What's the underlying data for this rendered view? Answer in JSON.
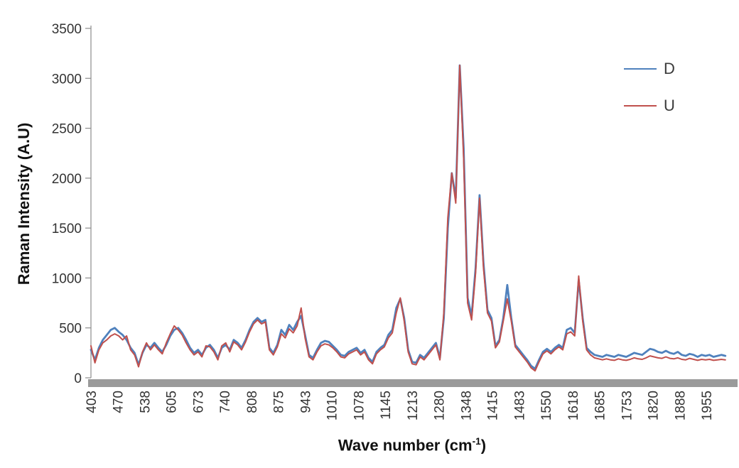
{
  "chart_data": {
    "type": "line",
    "title": "",
    "xlabel": "Wave number (cm⁻¹)",
    "xlabel_parts": {
      "pre": "Wave number (cm",
      "sup": "-1",
      "post": ")"
    },
    "ylabel": "Raman Intensity (A.U)",
    "xlim": [
      403,
      2023
    ],
    "ylim": [
      0,
      3500
    ],
    "grid": false,
    "legend_position": "top-right",
    "yticks": [
      0,
      500,
      1000,
      1500,
      2000,
      2500,
      3000,
      3500
    ],
    "xtick_labels": [
      "403",
      "470",
      "538",
      "605",
      "673",
      "740",
      "808",
      "875",
      "943",
      "1010",
      "1078",
      "1145",
      "1213",
      "1280",
      "1348",
      "1415",
      "1483",
      "1550",
      "1618",
      "1685",
      "1753",
      "1820",
      "1888",
      "1955"
    ],
    "axis_color": "#8c8c8c",
    "x_axis_bar_color": "#9a9a9a",
    "tick_label_color": "#333333",
    "x": [
      403,
      413,
      423,
      433,
      443,
      453,
      463,
      473,
      483,
      493,
      503,
      513,
      523,
      533,
      543,
      553,
      563,
      573,
      583,
      593,
      603,
      613,
      623,
      633,
      643,
      653,
      663,
      673,
      683,
      693,
      703,
      713,
      723,
      733,
      743,
      753,
      763,
      773,
      783,
      793,
      803,
      813,
      823,
      833,
      843,
      853,
      863,
      873,
      883,
      893,
      903,
      913,
      923,
      933,
      943,
      953,
      963,
      973,
      983,
      993,
      1003,
      1013,
      1023,
      1033,
      1043,
      1053,
      1063,
      1073,
      1083,
      1093,
      1103,
      1113,
      1123,
      1133,
      1143,
      1153,
      1163,
      1173,
      1183,
      1193,
      1203,
      1213,
      1223,
      1233,
      1243,
      1253,
      1263,
      1273,
      1283,
      1293,
      1303,
      1313,
      1323,
      1333,
      1343,
      1353,
      1363,
      1373,
      1383,
      1393,
      1403,
      1413,
      1423,
      1433,
      1443,
      1453,
      1463,
      1473,
      1483,
      1493,
      1503,
      1513,
      1523,
      1533,
      1543,
      1553,
      1563,
      1573,
      1583,
      1593,
      1603,
      1613,
      1623,
      1633,
      1643,
      1653,
      1663,
      1673,
      1683,
      1693,
      1703,
      1713,
      1723,
      1733,
      1743,
      1753,
      1763,
      1773,
      1783,
      1793,
      1803,
      1813,
      1823,
      1833,
      1843,
      1853,
      1863,
      1873,
      1883,
      1893,
      1903,
      1913,
      1923,
      1933,
      1943,
      1953,
      1963,
      1973,
      1983,
      1993,
      2003
    ],
    "series": [
      {
        "name": "D",
        "color": "#4F81BD",
        "line_width": 2.8,
        "values": [
          280,
          180,
          300,
          380,
          430,
          480,
          500,
          460,
          430,
          380,
          300,
          250,
          130,
          250,
          330,
          300,
          350,
          300,
          260,
          330,
          420,
          480,
          500,
          450,
          380,
          300,
          250,
          280,
          230,
          300,
          330,
          280,
          200,
          300,
          330,
          280,
          380,
          350,
          300,
          380,
          480,
          560,
          600,
          560,
          580,
          300,
          250,
          330,
          480,
          430,
          530,
          480,
          560,
          620,
          430,
          230,
          200,
          280,
          350,
          370,
          360,
          320,
          280,
          230,
          220,
          260,
          280,
          300,
          250,
          280,
          200,
          160,
          260,
          300,
          330,
          430,
          480,
          700,
          790,
          600,
          280,
          160,
          150,
          230,
          200,
          250,
          300,
          350,
          200,
          600,
          1500,
          2050,
          1800,
          3130,
          2300,
          800,
          620,
          1100,
          1830,
          1150,
          680,
          600,
          320,
          380,
          600,
          930,
          600,
          330,
          280,
          230,
          180,
          120,
          90,
          180,
          260,
          290,
          260,
          300,
          330,
          300,
          480,
          500,
          450,
          980,
          600,
          300,
          260,
          230,
          220,
          210,
          230,
          220,
          210,
          230,
          220,
          210,
          230,
          250,
          240,
          230,
          260,
          290,
          280,
          260,
          250,
          270,
          250,
          240,
          260,
          230,
          220,
          240,
          230,
          210,
          230,
          220,
          230,
          210,
          220,
          230,
          220
        ]
      },
      {
        "name": "U",
        "color": "#C0504D",
        "line_width": 2,
        "values": [
          320,
          150,
          280,
          350,
          380,
          420,
          440,
          420,
          380,
          420,
          280,
          230,
          110,
          260,
          350,
          280,
          330,
          280,
          240,
          350,
          440,
          520,
          480,
          430,
          350,
          280,
          230,
          260,
          210,
          320,
          310,
          260,
          180,
          320,
          350,
          260,
          360,
          330,
          280,
          360,
          460,
          540,
          580,
          540,
          560,
          280,
          230,
          310,
          440,
          400,
          490,
          450,
          520,
          700,
          400,
          210,
          180,
          260,
          320,
          340,
          330,
          300,
          260,
          210,
          200,
          240,
          260,
          280,
          230,
          260,
          180,
          140,
          240,
          280,
          310,
          400,
          450,
          650,
          800,
          570,
          260,
          140,
          130,
          210,
          180,
          230,
          280,
          330,
          180,
          650,
          1600,
          2050,
          1750,
          3130,
          2200,
          750,
          580,
          1050,
          1800,
          1100,
          650,
          570,
          300,
          360,
          570,
          790,
          570,
          310,
          260,
          210,
          160,
          100,
          70,
          160,
          240,
          270,
          240,
          280,
          310,
          280,
          440,
          460,
          420,
          1020,
          570,
          280,
          230,
          200,
          190,
          180,
          190,
          180,
          175,
          190,
          180,
          175,
          185,
          200,
          190,
          185,
          200,
          220,
          210,
          200,
          195,
          210,
          195,
          190,
          200,
          185,
          180,
          195,
          185,
          175,
          185,
          180,
          185,
          175,
          180,
          185,
          180
        ]
      }
    ]
  }
}
